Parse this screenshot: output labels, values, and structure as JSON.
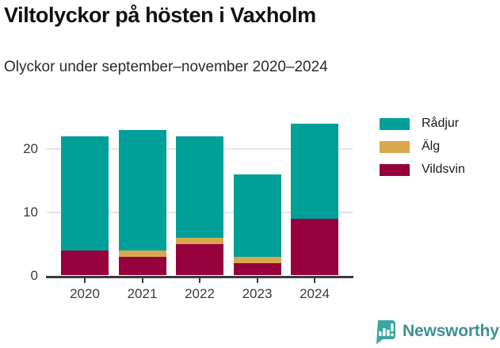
{
  "header": {
    "title": "Viltolyckor på hösten i Vaxholm",
    "subtitle": "Olyckor under september–november 2020–2024"
  },
  "chart_data": {
    "type": "bar",
    "stacked": true,
    "title": "Viltolyckor på hösten i Vaxholm",
    "subtitle": "Olyckor under september–november 2020–2024",
    "categories": [
      "2020",
      "2021",
      "2022",
      "2023",
      "2024"
    ],
    "series": [
      {
        "name": "Vildsvin",
        "color": "#95003d",
        "values": [
          4,
          3,
          5,
          2,
          9
        ]
      },
      {
        "name": "Älg",
        "color": "#d9a84e",
        "values": [
          0,
          1,
          1,
          1,
          0
        ]
      },
      {
        "name": "Rådjur",
        "color": "#00a099",
        "values": [
          18,
          19,
          16,
          13,
          15
        ]
      }
    ],
    "totals": [
      22,
      23,
      22,
      16,
      24
    ],
    "xlabel": "",
    "ylabel": "",
    "yticks": [
      0,
      10,
      20
    ],
    "ylim": [
      0,
      25
    ],
    "grid": "horizontal-light",
    "legend_position": "right",
    "legend_order_top_to_bottom": [
      "Rådjur",
      "Älg",
      "Vildsvin"
    ]
  },
  "legend": {
    "items": [
      {
        "label": "Rådjur",
        "color": "#00a099"
      },
      {
        "label": "Älg",
        "color": "#d9a84e"
      },
      {
        "label": "Vildsvin",
        "color": "#95003d"
      }
    ]
  },
  "footer": {
    "brand": "Newsworthy",
    "brand_text_color": "#3f9193",
    "brand_icon_color": "#3ba79f"
  },
  "colors": {
    "axis": "#3b3b3b",
    "gridline": "#e4e4e4",
    "tick_text": "#3b3b3b",
    "title_text": "#111111",
    "subtitle_text": "#2b2b2b"
  }
}
